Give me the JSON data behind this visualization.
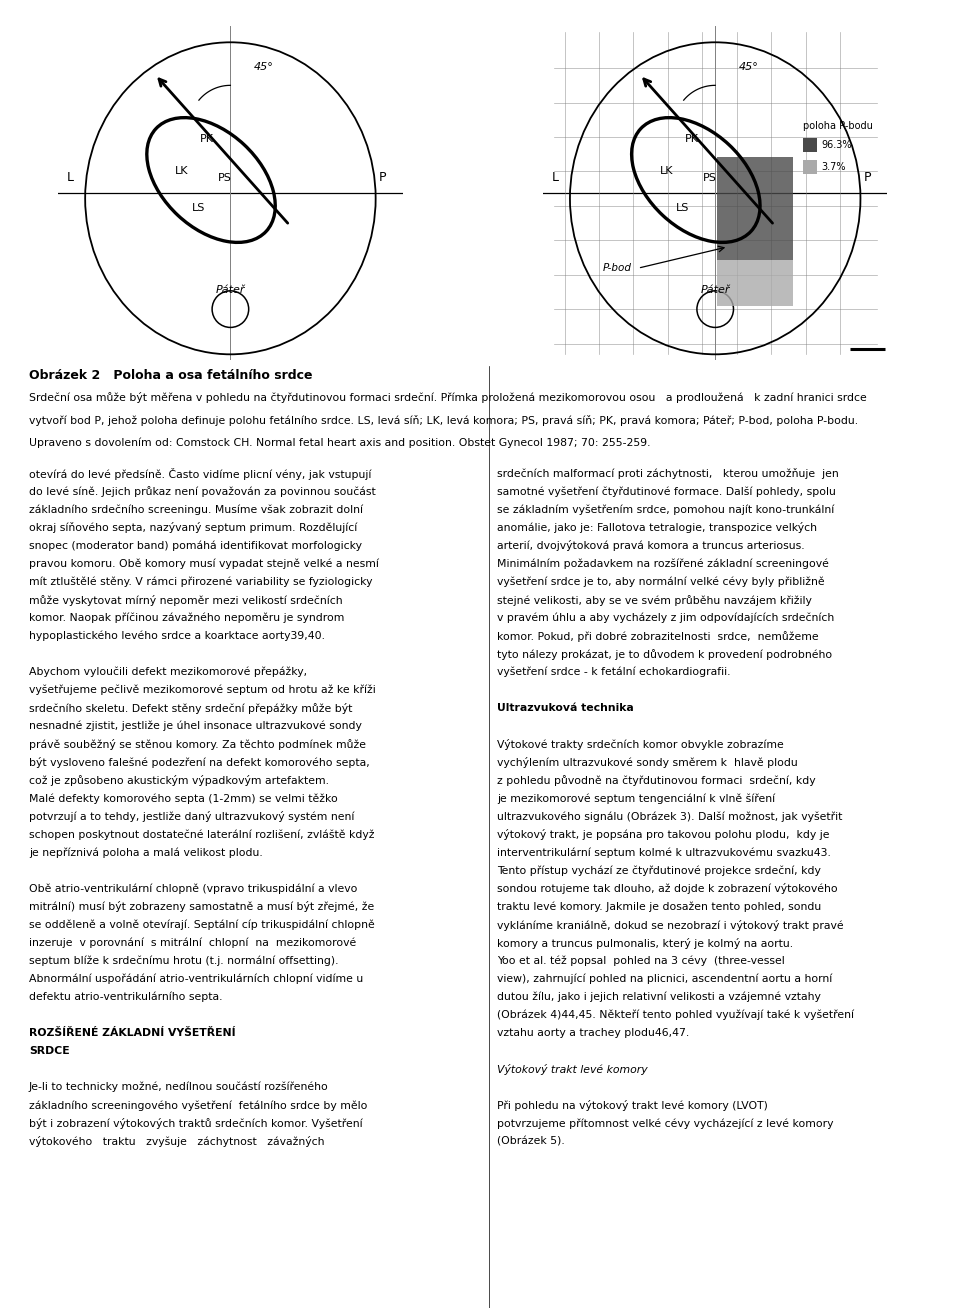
{
  "fig_width": 9.6,
  "fig_height": 13.08,
  "bg_color": "#ffffff",
  "diagram_title": "Obrázek 2   Poloha a osa fetálního srdce",
  "caption_line1": "Srdeční osa může být měřena v pohledu na čtyřdutinovou formaci srdeční. Přímka proložená mezikomorovou osou   a prodloužená   k zadní hranici srdce",
  "caption_line2": "vytvoří bod P, jehož poloha definuje polohu fetálního srdce. LS, levá síň; LK, levá komora; PS, pravá síň; PK, pravá komora; Páteř; P-bod, poloha P-bodu.",
  "caption_line3": "Upraveno s dovolením od: Comstock CH. Normal fetal heart axis and position. Obstet Gynecol 1987; 70: 255-259.",
  "body_col1": [
    "otevírá do levé předsíně. Často vidíme plicní vény, jak vstupují",
    "do levé síně. Jejich průkaz není považován za povinnou součást",
    "základního srdečního screeningu. Musíme však zobrazit dolní",
    "okraj síňového septa, nazývaný septum primum. Rozdělující",
    "snopec (moderator band) pomáhá identifikovat morfologicky",
    "pravou komoru. Obě komory musí vypadat stejně velké a nesmí",
    "mít ztluštělé stěny. V rámci přirozené variability se fyziologicky",
    "může vyskytovat mírný nepoměr mezi velikostí srdečních",
    "komor. Naopak příčinou závažného nepoměru je syndrom",
    "hypoplastického levého srdce a koarktace aorty39,40.",
    "",
    "Abychom vyloučili defekt mezikomorové přepážky,",
    "vyšetřujeme pečlivě mezikomorové septum od hrotu až ke kříži",
    "srdečního skeletu. Defekt stěny srdeční přepážky může být",
    "nesnadné zjistit, jestliže je úhel insonace ultrazvukové sondy",
    "právě souběžný se stěnou komory. Za těchto podmínek může",
    "být vysloveno falešné podezření na defekt komorového septa,",
    "což je způsobeno akustickým výpadkovým artefaktem.",
    "Malé defekty komorového septa (1-2mm) se velmi těžko",
    "potvrzují a to tehdy, jestliže daný ultrazvukový systém není",
    "schopen poskytnout dostatečné laterální rozlišení, zvláště když",
    "je nepříznivá poloha a malá velikost plodu.",
    "",
    "Obě atrio-ventrikulární chlopně (vpravo trikuspidální a vlevo",
    "mitrální) musí být zobrazeny samostatně a musí být zřejmé, že",
    "se odděleně a volně otevírají. Septální cíp trikuspidální chlopně",
    "inzeruje  v porovnání  s mitrální  chlopní  na  mezikomorové",
    "septum blíže k srdečnímu hrotu (t.j. normální offsetting).",
    "Abnormální uspořádání atrio-ventrikulárních chlopní vidíme u",
    "defektu atrio-ventrikulárního septa.",
    "",
    "ROZŠÍŘENÉ ZÁKLADNÍ VYŠETŘENÍ",
    "SRDCE",
    "",
    "Je-li to technicky možné, nedílnou součástí rozšířeného",
    "základního screeningového vyšetření  fetálního srdce by mělo",
    "být i zobrazení výtokových traktů srdečních komor. Vyšetření",
    "výtokového   traktu   zvyšuje   záchytnost   závažných"
  ],
  "body_col2": [
    "srdečních malformací proti záchytnosti,   kterou umožňuje  jen",
    "samotné vyšetření čtyřdutinové formace. Další pohledy, spolu",
    "se základním vyšetřením srdce, pomohou najít kono-trunkální",
    "anomálie, jako je: Fallotova tetralogie, transpozice velkých",
    "arterií, dvojvýtoková pravá komora a truncus arteriosus.",
    "Minimálním požadavkem na rozšířené základní screeningové",
    "vyšetření srdce je to, aby normální velké cévy byly přibližně",
    "stejné velikosti, aby se ve svém průběhu navzájem křižily",
    "v pravém úhlu a aby vycházely z jim odpovídajících srdečních",
    "komor. Pokud, při dobré zobrazitelnosti  srdce,  nemůžeme",
    "tyto nálezy prokázat, je to důvodem k provedení podrobného",
    "vyšetření srdce - k fetální echokardiografii.",
    "",
    "Ultrazvuková technika",
    "",
    "Výtokové trakty srdečních komor obvykle zobrazíme",
    "vychýlením ultrazvukové sondy směrem k  hlavě plodu",
    "z pohledu původně na čtyřdutinovou formaci  srdeční, kdy",
    "je mezikomorové septum tengenciální k vlně šíření",
    "ultrazvukového signálu (Obrázek 3). Další možnost, jak vyšetřit",
    "výtokový trakt, je popsána pro takovou polohu plodu,  kdy je",
    "interventrikulární septum kolmé k ultrazvukovému svazku43.",
    "Tento přístup vychází ze čtyřdutinové projekce srdeční, kdy",
    "sondou rotujeme tak dlouho, až dojde k zobrazení výtokového",
    "traktu levé komory. Jakmile je dosažen tento pohled, sondu",
    "vykláníme kraniálně, dokud se nezobrazí i výtokový trakt pravé",
    "komory a truncus pulmonalis, který je kolmý na aortu.",
    "Yoo et al. též popsal  pohled na 3 cévy  (three-vessel",
    "view), zahrnující pohled na plicnici, ascendentní aortu a horní",
    "dutou žílu, jako i jejich relativní velikosti a vzájemné vztahy",
    "(Obrázek 4)44,45. Někteří tento pohled využívají také k vyšetření",
    "vztahu aorty a trachey plodu46,47.",
    "",
    "Výtokový trakt levé komory",
    "",
    "Při pohledu na výtokový trakt levé komory (LVOT)",
    "potvrzujeme přítomnost velké cévy vycházející z levé komory",
    "(Obrázek 5)."
  ],
  "dark_gray": "#555555",
  "light_gray": "#aaaaaa"
}
